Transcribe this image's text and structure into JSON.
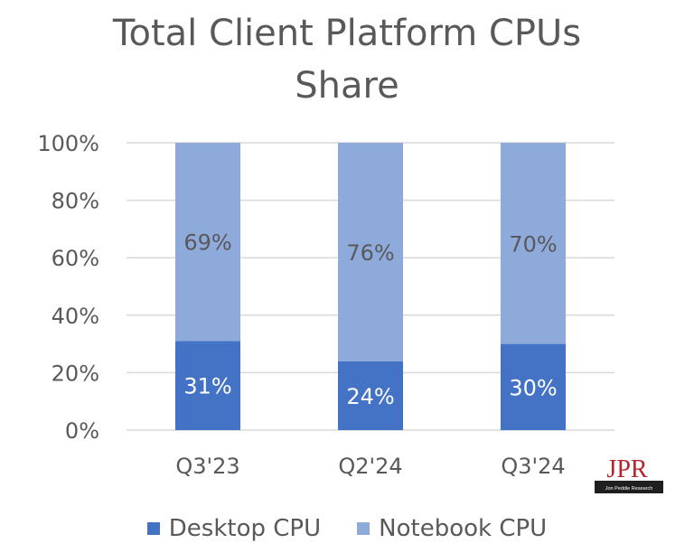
{
  "chart_data": {
    "type": "bar",
    "stacked": true,
    "title": "Total Client Platform CPUs Share",
    "title_lines": [
      "Total Client Platform CPUs",
      "Share"
    ],
    "categories": [
      "Q3'23",
      "Q2'24",
      "Q3'24"
    ],
    "series": [
      {
        "name": "Desktop CPU",
        "values": [
          31,
          24,
          30
        ],
        "labels": [
          "31%",
          "24%",
          "30%"
        ],
        "color": "#4472c4"
      },
      {
        "name": "Notebook CPU",
        "values": [
          69,
          76,
          70
        ],
        "labels": [
          "69%",
          "76%",
          "70%"
        ],
        "color": "#8eaadb"
      }
    ],
    "ylim": [
      0,
      100
    ],
    "yticks": [
      "0%",
      "20%",
      "40%",
      "60%",
      "80%",
      "100%"
    ],
    "grid": true,
    "legend_position": "bottom",
    "colors": {
      "text": "#595959",
      "grid": "#d9d9d9",
      "label_on_dark": "#ffffff"
    }
  },
  "logo": {
    "text": "JPR",
    "subtext": "Jon Peddie Research",
    "colors": {
      "red": "#b8232f",
      "dark": "#1f1f1f"
    }
  }
}
